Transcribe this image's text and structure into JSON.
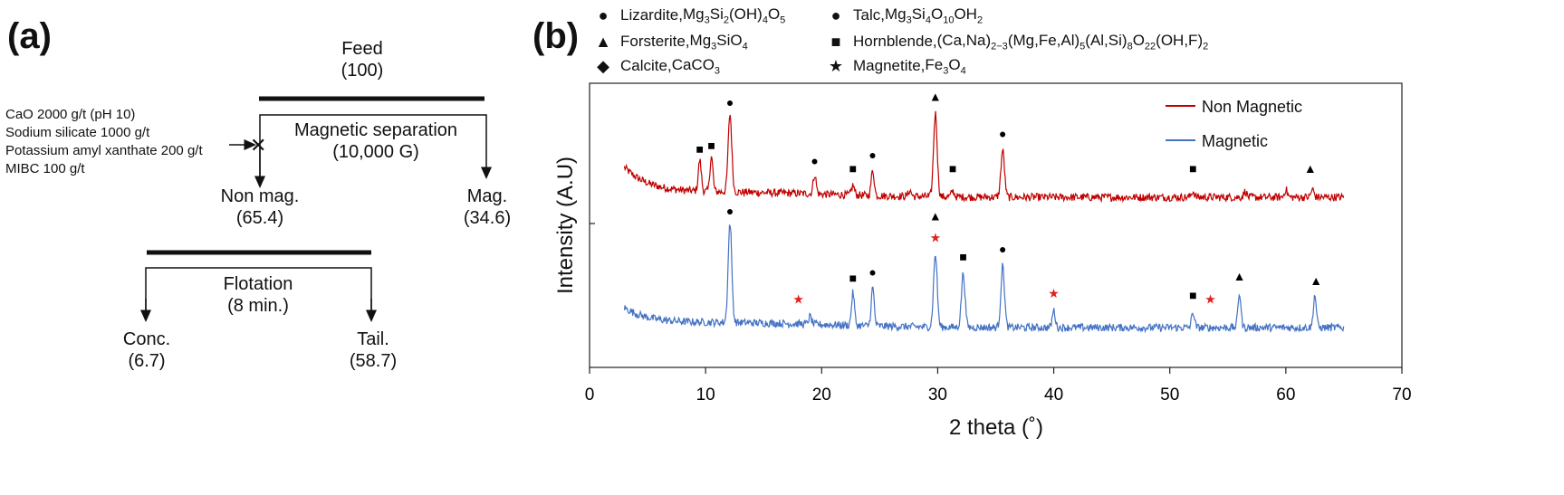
{
  "panel_a": {
    "label": "(a)",
    "feed": {
      "name": "Feed",
      "value": "(100)"
    },
    "magnetic_separation": {
      "name": "Magnetic separation",
      "field": "(10,000 G)"
    },
    "conditions": [
      "CaO 2000 g/t (pH 10)",
      "Sodium silicate 1000 g/t",
      "Potassium amyl xanthate 200 g/t",
      "MIBC 100 g/t"
    ],
    "cross_mark": "✕",
    "non_mag": {
      "name": "Non mag.",
      "value": "(65.4)"
    },
    "mag": {
      "name": "Mag.",
      "value": "(34.6)"
    },
    "flotation": {
      "name": "Flotation",
      "time": "(8 min.)"
    },
    "conc": {
      "name": "Conc.",
      "value": "(6.7)"
    },
    "tail": {
      "name": "Tail.",
      "value": "(58.7)"
    }
  },
  "panel_b": {
    "label": "(b)",
    "phase_legend": [
      {
        "symbol": "●",
        "name": "Lizardite, ",
        "formula": "Mg<sub>3</sub>Si<sub>2</sub>(OH)<sub>4</sub>O<sub>5</sub>"
      },
      {
        "symbol": "▲",
        "name": "Forsterite, ",
        "formula": "Mg<sub>3</sub>SiO<sub>4</sub>"
      },
      {
        "symbol": "◆",
        "name": "Calcite, ",
        "formula": "CaCO<sub>3</sub>"
      },
      {
        "symbol": "●",
        "name": "Talc, ",
        "formula": "Mg<sub>3</sub>Si<sub>4</sub>O<sub>10</sub>OH<sub>2</sub>"
      },
      {
        "symbol": "■",
        "name": "Hornblende, ",
        "formula": "(Ca,Na)<sub>2−3</sub>(Mg,Fe,Al)<sub>5</sub>(Al,Si)<sub>8</sub>O<sub>22</sub>(OH,F)<sub>2</sub>"
      },
      {
        "symbol": "★",
        "name": "Magnetite, ",
        "formula": "Fe<sub>3</sub>O<sub>4</sub>"
      }
    ]
  },
  "chart_data": {
    "type": "line",
    "title": "",
    "xlabel": "2 theta (˚)",
    "ylabel": "Intensity (A.U)",
    "xlim": [
      0,
      70
    ],
    "xticks": [
      0,
      10,
      20,
      30,
      40,
      50,
      60,
      70
    ],
    "ylim": [
      0,
      100
    ],
    "grid": false,
    "legend_position": "top-right",
    "colors": {
      "Non Magnetic": "#c00000",
      "Magnetic": "#4472c4",
      "magnetite_marker": "#e02020"
    },
    "series": [
      {
        "name": "Non Magnetic",
        "x_range": [
          3,
          65
        ],
        "peaks": [
          {
            "x": 9.5,
            "y": 16
          },
          {
            "x": 10.5,
            "y": 18
          },
          {
            "x": 12.1,
            "y": 40
          },
          {
            "x": 19.4,
            "y": 10
          },
          {
            "x": 22.7,
            "y": 5
          },
          {
            "x": 24.4,
            "y": 13
          },
          {
            "x": 27.6,
            "y": 3
          },
          {
            "x": 29.8,
            "y": 43
          },
          {
            "x": 31.3,
            "y": 3
          },
          {
            "x": 35.6,
            "y": 24
          },
          {
            "x": 52.0,
            "y": 3
          },
          {
            "x": 56.5,
            "y": 3
          },
          {
            "x": 60.0,
            "y": 4
          },
          {
            "x": 62.3,
            "y": 4
          }
        ]
      },
      {
        "name": "Magnetic",
        "x_range": [
          3,
          65
        ],
        "peaks": [
          {
            "x": 12.1,
            "y": 52
          },
          {
            "x": 19.0,
            "y": 4
          },
          {
            "x": 22.7,
            "y": 17
          },
          {
            "x": 24.4,
            "y": 20
          },
          {
            "x": 29.8,
            "y": 38
          },
          {
            "x": 32.2,
            "y": 28
          },
          {
            "x": 35.6,
            "y": 32
          },
          {
            "x": 40.0,
            "y": 9
          },
          {
            "x": 52.0,
            "y": 8
          },
          {
            "x": 56.0,
            "y": 18
          },
          {
            "x": 62.5,
            "y": 17
          }
        ]
      }
    ],
    "peak_markers": [
      {
        "series": "Non Magnetic",
        "x": 9.5,
        "symbol": "■",
        "phase": "Hornblende"
      },
      {
        "series": "Non Magnetic",
        "x": 10.5,
        "symbol": "■",
        "phase": "Hornblende"
      },
      {
        "series": "Non Magnetic",
        "x": 12.1,
        "symbol": "●",
        "phase": "Lizardite"
      },
      {
        "series": "Non Magnetic",
        "x": 19.4,
        "symbol": "●",
        "phase": "Lizardite"
      },
      {
        "series": "Non Magnetic",
        "x": 22.7,
        "symbol": "■",
        "phase": "Hornblende"
      },
      {
        "series": "Non Magnetic",
        "x": 24.4,
        "symbol": "●",
        "phase": "Lizardite"
      },
      {
        "series": "Non Magnetic",
        "x": 29.8,
        "symbol": "▲",
        "phase": "Forsterite"
      },
      {
        "series": "Non Magnetic",
        "x": 31.3,
        "symbol": "■",
        "phase": "Hornblende"
      },
      {
        "series": "Non Magnetic",
        "x": 35.6,
        "symbol": "●",
        "phase": "Lizardite"
      },
      {
        "series": "Non Magnetic",
        "x": 52.0,
        "symbol": "■",
        "phase": "Hornblende"
      },
      {
        "series": "Non Magnetic",
        "x": 62.1,
        "symbol": "▲",
        "phase": "Forsterite"
      },
      {
        "series": "Magnetic",
        "x": 12.1,
        "symbol": "●",
        "phase": "Lizardite"
      },
      {
        "series": "Magnetic",
        "x": 18.0,
        "symbol": "★",
        "phase": "Magnetite"
      },
      {
        "series": "Magnetic",
        "x": 22.7,
        "symbol": "■",
        "phase": "Hornblende"
      },
      {
        "series": "Magnetic",
        "x": 24.4,
        "symbol": "●",
        "phase": "Lizardite"
      },
      {
        "series": "Magnetic",
        "x": 29.8,
        "symbol": "★",
        "phase": "Magnetite"
      },
      {
        "series": "Magnetic",
        "x": 29.8,
        "symbol": "▲",
        "phase": "Forsterite"
      },
      {
        "series": "Magnetic",
        "x": 32.2,
        "symbol": "■",
        "phase": "Hornblende"
      },
      {
        "series": "Magnetic",
        "x": 35.6,
        "symbol": "●",
        "phase": "Lizardite"
      },
      {
        "series": "Magnetic",
        "x": 40.0,
        "symbol": "★",
        "phase": "Magnetite"
      },
      {
        "series": "Magnetic",
        "x": 52.0,
        "symbol": "■",
        "phase": "Hornblende"
      },
      {
        "series": "Magnetic",
        "x": 53.5,
        "symbol": "★",
        "phase": "Magnetite"
      },
      {
        "series": "Magnetic",
        "x": 56.0,
        "symbol": "▲",
        "phase": "Forsterite"
      },
      {
        "series": "Magnetic",
        "x": 62.6,
        "symbol": "▲",
        "phase": "Forsterite"
      }
    ]
  }
}
